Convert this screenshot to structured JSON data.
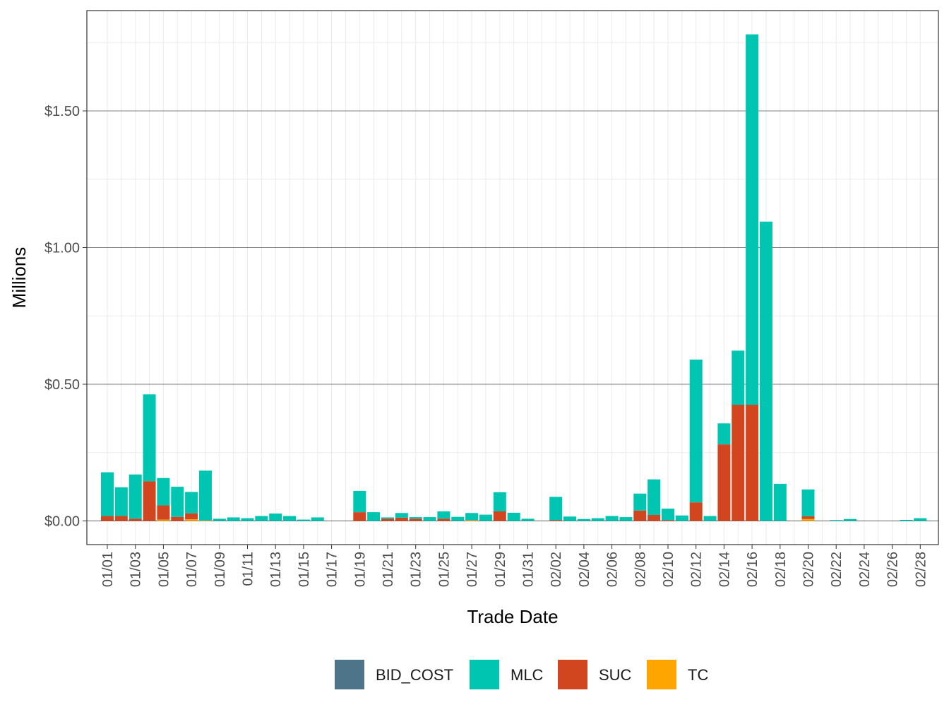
{
  "chart_data": {
    "type": "bar",
    "stacked": true,
    "xlabel": "Trade Date",
    "ylabel": "Millions",
    "ylim": [
      -0.08,
      1.86
    ],
    "y_ticks": [
      0,
      0.5,
      1.0,
      1.5
    ],
    "y_tick_labels": [
      "$0.00",
      "$0.50",
      "$1.00",
      "$1.50"
    ],
    "grid": true,
    "legend_position": "bottom",
    "categories": [
      "01/01",
      "01/02",
      "01/03",
      "01/04",
      "01/05",
      "01/06",
      "01/07",
      "01/08",
      "01/09",
      "01/10",
      "01/11",
      "01/12",
      "01/13",
      "01/14",
      "01/15",
      "01/16",
      "01/17",
      "01/18",
      "01/19",
      "01/20",
      "01/21",
      "01/22",
      "01/23",
      "01/24",
      "01/25",
      "01/26",
      "01/27",
      "01/28",
      "01/29",
      "01/30",
      "01/31",
      "02/01",
      "02/02",
      "02/03",
      "02/04",
      "02/05",
      "02/06",
      "02/07",
      "02/08",
      "02/09",
      "02/10",
      "02/11",
      "02/12",
      "02/13",
      "02/14",
      "02/15",
      "02/16",
      "02/17",
      "02/18",
      "02/19",
      "02/20",
      "02/21",
      "02/22",
      "02/23",
      "02/24",
      "02/25",
      "02/26",
      "02/27",
      "02/28"
    ],
    "x_tick_labels": [
      "01/01",
      "01/03",
      "01/05",
      "01/07",
      "01/09",
      "01/11",
      "01/13",
      "01/15",
      "01/17",
      "01/19",
      "01/21",
      "01/23",
      "01/25",
      "01/27",
      "01/29",
      "01/31",
      "02/02",
      "02/04",
      "02/06",
      "02/08",
      "02/10",
      "02/12",
      "02/14",
      "02/16",
      "02/18",
      "02/20",
      "02/22",
      "02/24",
      "02/26",
      "02/28"
    ],
    "series": [
      {
        "name": "BID_COST",
        "color": "#4e7489",
        "values": [
          0,
          0,
          0,
          0,
          0,
          0,
          0,
          0,
          0,
          0,
          0,
          0,
          0,
          0,
          0,
          0,
          0,
          0,
          0,
          0,
          0,
          0,
          0,
          0,
          0,
          0,
          0,
          0,
          0,
          0,
          0,
          0,
          0,
          0,
          0,
          0,
          0,
          0,
          0,
          0,
          0,
          0,
          0,
          0,
          0,
          0,
          0,
          0,
          0,
          0,
          0,
          0,
          0,
          0,
          0,
          0,
          0,
          0,
          0
        ]
      },
      {
        "name": "TC",
        "color": "#ffa500",
        "values": [
          0,
          0,
          0,
          0,
          0.005,
          0,
          0.006,
          0.002,
          0,
          0,
          0,
          0,
          0,
          0,
          0,
          0,
          0,
          0,
          0,
          0,
          0,
          0,
          0,
          0,
          0,
          0,
          0.003,
          0,
          0,
          0,
          0,
          0,
          0,
          0,
          0,
          0,
          0,
          0,
          0,
          0,
          0,
          0,
          0,
          0,
          0,
          0,
          0,
          0,
          0,
          0,
          0.007,
          0,
          0,
          0,
          0,
          0,
          0,
          0,
          0
        ]
      },
      {
        "name": "SUC",
        "color": "#d1451f",
        "values": [
          0.018,
          0.018,
          0.008,
          0.145,
          0.052,
          0.015,
          0.022,
          0,
          0,
          0,
          0,
          0,
          0,
          0,
          0,
          0,
          0,
          0,
          0.032,
          0,
          0.008,
          0.012,
          0.008,
          0,
          0.008,
          0,
          0,
          0,
          0.035,
          0,
          0,
          0,
          0.003,
          0,
          0,
          0,
          0,
          0,
          0.038,
          0.022,
          0.003,
          0,
          0.068,
          0,
          0.28,
          0.425,
          0.425,
          0,
          0,
          0,
          0.01,
          0,
          0,
          0,
          0,
          0,
          0,
          0,
          0
        ]
      },
      {
        "name": "MLC",
        "color": "#00c5b1",
        "values": [
          0.16,
          0.105,
          0.162,
          0.318,
          0.1,
          0.11,
          0.078,
          0.182,
          0.008,
          0.013,
          0.01,
          0.018,
          0.027,
          0.018,
          0.005,
          0.013,
          0,
          0,
          0.078,
          0.032,
          0.005,
          0.017,
          0.006,
          0.014,
          0.027,
          0.015,
          0.026,
          0.023,
          0.07,
          0.03,
          0.008,
          0,
          0.085,
          0.016,
          0.007,
          0.01,
          0.018,
          0.014,
          0.062,
          0.13,
          0.042,
          0.02,
          0.522,
          0.018,
          0.077,
          0.198,
          1.355,
          1.095,
          0.136,
          0,
          0.098,
          0,
          0.003,
          0.007,
          0,
          0,
          0,
          0.004,
          0.01
        ]
      }
    ],
    "stack_order_bottom_to_top": [
      "TC",
      "SUC",
      "MLC",
      "BID_COST"
    ],
    "legend": [
      "BID_COST",
      "MLC",
      "SUC",
      "TC"
    ]
  }
}
